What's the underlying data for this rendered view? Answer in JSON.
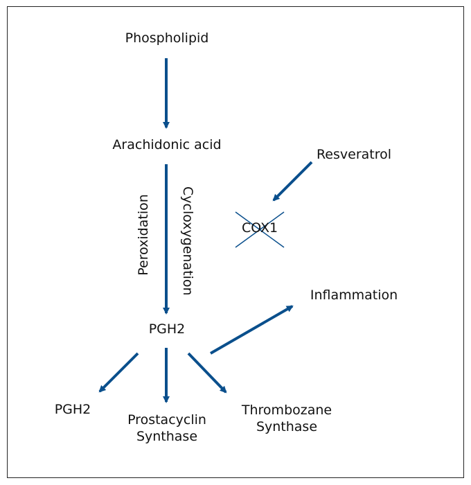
{
  "diagram": {
    "nodes": {
      "phospholipid": "Phospholipid",
      "arachidonic_acid": "Arachidonic acid",
      "resveratrol": "Resveratrol",
      "cox1": "COX1",
      "inflammation": "Inflammation",
      "pgh2_center": "PGH2",
      "pgh2_left": "PGH2",
      "prostacyclin_line1": "Prostacyclin",
      "prostacyclin_line2": "Synthase",
      "thrombozane_line1": "Thrombozane",
      "thrombozane_line2": "Synthase"
    },
    "edge_labels": {
      "peroxidation": "Peroxidation",
      "cyclooxygenation": "Cycloxygenation"
    },
    "colors": {
      "arrow": "#0a4f8c",
      "text": "#111111",
      "border": "#222222"
    }
  }
}
